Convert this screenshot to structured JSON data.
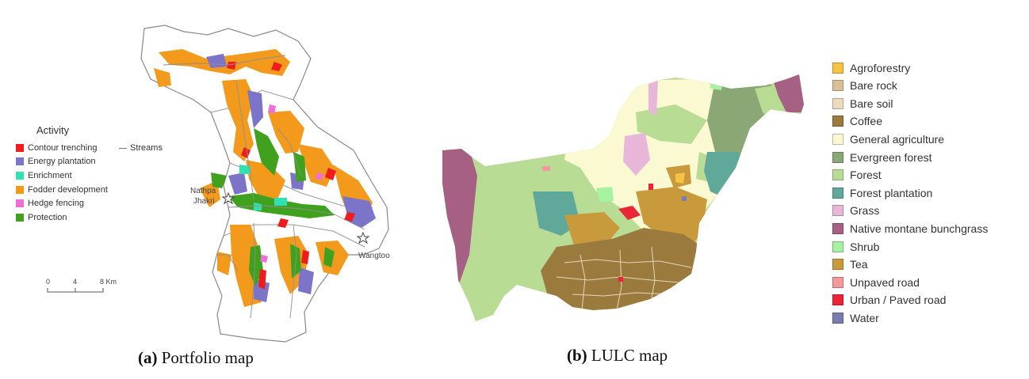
{
  "panel_a": {
    "legend_title": "Activity",
    "activities": [
      {
        "label": "Contour trenching",
        "color": "#ee1c1c"
      },
      {
        "label": "Energy plantation",
        "color": "#7b74c9"
      },
      {
        "label": "Enrichment",
        "color": "#33e0b0"
      },
      {
        "label": "Fodder development",
        "color": "#f39a1c"
      },
      {
        "label": "Hedge fencing",
        "color": "#ee6fd6"
      },
      {
        "label": "Protection",
        "color": "#3fa11e"
      }
    ],
    "streams_label": "Streams",
    "places": {
      "nathpa_line1": "Nathpa",
      "nathpa_line2": "Jhakri",
      "wangtoo": "Wangtoo"
    },
    "scale": {
      "t0": "0",
      "t1": "4",
      "t2": "8 Km"
    },
    "caption_tag": "(a)",
    "caption_text": " Portfolio map"
  },
  "panel_b": {
    "classes": [
      {
        "label": "Agroforestry",
        "color": "#f6c244"
      },
      {
        "label": "Bare rock",
        "color": "#d9c097"
      },
      {
        "label": "Bare soil",
        "color": "#ecdcbf"
      },
      {
        "label": "Coffee",
        "color": "#9b7a3e"
      },
      {
        "label": "General agriculture",
        "color": "#fbf9d1"
      },
      {
        "label": "Evergreen forest",
        "color": "#8aa775"
      },
      {
        "label": "Forest",
        "color": "#b9dc95"
      },
      {
        "label": "Forest plantation",
        "color": "#5fa89a"
      },
      {
        "label": "Grass",
        "color": "#e7b6d8"
      },
      {
        "label": "Native montane bunchgrass",
        "color": "#a66083"
      },
      {
        "label": "Shrub",
        "color": "#a5f3a0"
      },
      {
        "label": "Tea",
        "color": "#c99a3c"
      },
      {
        "label": "Unpaved road",
        "color": "#f4999b"
      },
      {
        "label": "Urban / Paved road",
        "color": "#ea2537"
      },
      {
        "label": "Water",
        "color": "#7a7caf"
      }
    ],
    "caption_tag": "(b)",
    "caption_text": " LULC map"
  }
}
